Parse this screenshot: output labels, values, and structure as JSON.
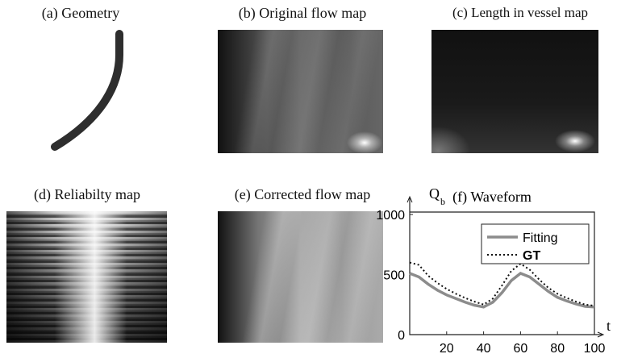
{
  "panels": [
    {
      "title": "(a)  Geometry"
    },
    {
      "title": "(b) Original flow map"
    },
    {
      "title": "(c) Length in vessel map"
    },
    {
      "title": "(d) Reliabilty map"
    },
    {
      "title": "(e) Corrected flow map"
    }
  ],
  "chart_data": {
    "type": "line",
    "title": "(f)  Waveform",
    "y_label": "Q",
    "y_label_subscript": "b",
    "x_label": "t",
    "x": [
      0,
      5,
      10,
      15,
      20,
      25,
      30,
      35,
      40,
      45,
      50,
      55,
      60,
      65,
      70,
      75,
      80,
      85,
      90,
      95,
      100
    ],
    "series": [
      {
        "name": "Fitting",
        "color": "#8c8c8c",
        "values": [
          510,
          480,
          420,
          370,
          330,
          300,
          270,
          245,
          230,
          270,
          350,
          450,
          510,
          480,
          420,
          360,
          310,
          280,
          255,
          235,
          230
        ]
      },
      {
        "name": "GT",
        "color": "#111111",
        "values": [
          600,
          580,
          490,
          430,
          380,
          340,
          305,
          275,
          250,
          300,
          410,
          530,
          590,
          540,
          460,
          390,
          340,
          305,
          275,
          250,
          240
        ]
      }
    ],
    "xlim": [
      0,
      100
    ],
    "ylim": [
      0,
      1000
    ],
    "xticks": [
      20,
      40,
      60,
      80,
      100
    ],
    "yticks": [
      0,
      500,
      1000
    ]
  }
}
